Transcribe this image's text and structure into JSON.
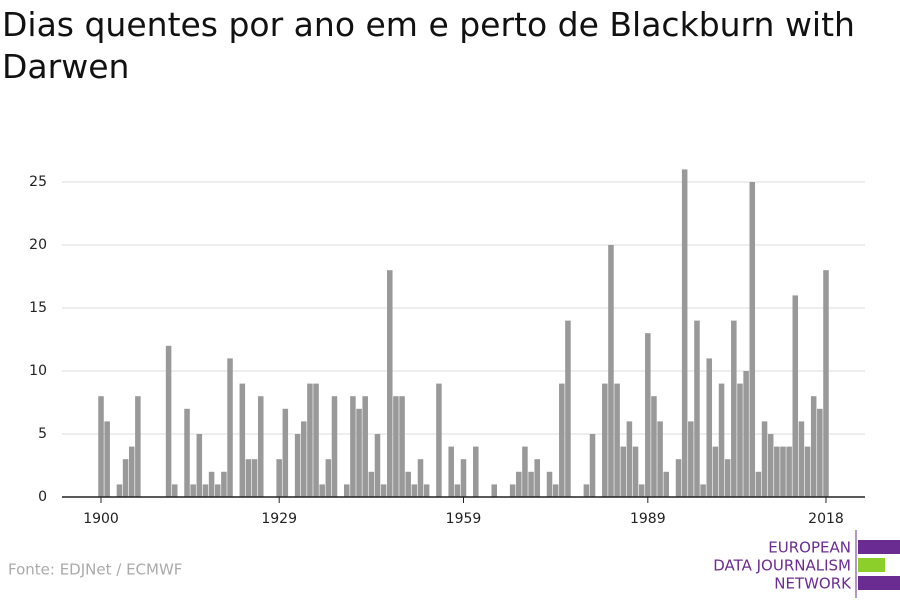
{
  "chart_data": {
    "type": "bar",
    "title": "Dias quentes por ano em e perto de Blackburn with Darwen",
    "x": [
      1900,
      1901,
      1902,
      1903,
      1904,
      1905,
      1906,
      1907,
      1908,
      1909,
      1910,
      1911,
      1912,
      1913,
      1914,
      1915,
      1916,
      1917,
      1918,
      1919,
      1920,
      1921,
      1922,
      1923,
      1924,
      1925,
      1926,
      1927,
      1928,
      1929,
      1930,
      1931,
      1932,
      1933,
      1934,
      1935,
      1936,
      1937,
      1938,
      1939,
      1940,
      1941,
      1942,
      1943,
      1944,
      1945,
      1946,
      1947,
      1948,
      1949,
      1950,
      1951,
      1952,
      1953,
      1954,
      1955,
      1956,
      1957,
      1958,
      1959,
      1960,
      1961,
      1962,
      1963,
      1964,
      1965,
      1966,
      1967,
      1968,
      1969,
      1970,
      1971,
      1972,
      1973,
      1974,
      1975,
      1976,
      1977,
      1978,
      1979,
      1980,
      1981,
      1982,
      1983,
      1984,
      1985,
      1986,
      1987,
      1988,
      1989,
      1990,
      1991,
      1992,
      1993,
      1994,
      1995,
      1996,
      1997,
      1998,
      1999,
      2000,
      2001,
      2002,
      2003,
      2004,
      2005,
      2006,
      2007,
      2008,
      2009,
      2010,
      2011,
      2012,
      2013,
      2014,
      2015,
      2016,
      2017,
      2018
    ],
    "values": [
      8,
      6,
      0,
      1,
      3,
      4,
      8,
      0,
      0,
      0,
      0,
      12,
      1,
      0,
      7,
      1,
      5,
      1,
      2,
      1,
      2,
      11,
      0,
      9,
      3,
      3,
      8,
      0,
      0,
      3,
      7,
      0,
      5,
      6,
      9,
      9,
      1,
      3,
      8,
      0,
      1,
      8,
      7,
      8,
      2,
      5,
      1,
      18,
      8,
      8,
      2,
      1,
      3,
      1,
      0,
      9,
      0,
      4,
      1,
      3,
      0,
      4,
      0,
      0,
      1,
      0,
      0,
      1,
      2,
      4,
      2,
      3,
      0,
      2,
      1,
      9,
      14,
      0,
      0,
      1,
      5,
      0,
      9,
      20,
      9,
      4,
      6,
      4,
      1,
      13,
      8,
      6,
      2,
      0,
      3,
      26,
      6,
      14,
      1,
      11,
      4,
      9,
      3,
      14,
      9,
      10,
      25,
      2,
      6,
      5,
      4,
      4,
      4,
      16,
      6,
      4,
      8,
      7,
      18
    ],
    "color": "#999999",
    "xlim": [
      1893.65,
      2024.35
    ],
    "xticks": [
      1900,
      1929,
      1959,
      1989,
      2018
    ],
    "ylim": [
      0,
      27
    ],
    "yticks": [
      0,
      5,
      10,
      15,
      20,
      25
    ],
    "grid": true
  },
  "footer": {
    "source": "Fonte: EDJNet / ECMWF",
    "logo": [
      "EUROPEAN",
      "DATA JOURNALISM",
      "NETWORK"
    ]
  }
}
